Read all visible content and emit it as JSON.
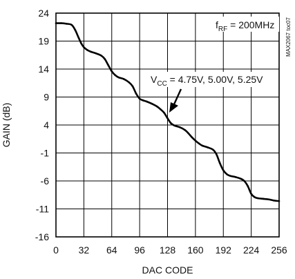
{
  "chart_data": {
    "type": "line",
    "title": "",
    "xlabel": "DAC CODE",
    "ylabel": "GAIN (dB)",
    "xlim": [
      0,
      256
    ],
    "ylim": [
      -16,
      24
    ],
    "grid": true,
    "x_ticks": [
      "0",
      "32",
      "64",
      "96",
      "128",
      "160",
      "192",
      "224",
      "256"
    ],
    "y_ticks": [
      "24",
      "19",
      "14",
      "9",
      "4",
      "-1",
      "-6",
      "-11",
      "-16"
    ],
    "series": [
      {
        "x": [
          0,
          6,
          12,
          18,
          22,
          26,
          29,
          32,
          36,
          40,
          46,
          52,
          56,
          60,
          64,
          68,
          72,
          78,
          84,
          88,
          92,
          96,
          100,
          104,
          110,
          116,
          120,
          124,
          128,
          132,
          136,
          142,
          148,
          152,
          156,
          160,
          164,
          168,
          174,
          180,
          184,
          188,
          192,
          196,
          200,
          206,
          212,
          216,
          220,
          224,
          228,
          232,
          238,
          244,
          250,
          256
        ],
        "values": [
          22.2,
          22.2,
          22.1,
          21.9,
          21.0,
          19.6,
          18.6,
          17.9,
          17.4,
          17.1,
          16.8,
          16.4,
          15.8,
          14.7,
          13.6,
          12.9,
          12.5,
          12.2,
          11.6,
          10.9,
          9.6,
          8.7,
          8.4,
          8.2,
          7.8,
          7.3,
          6.8,
          6.2,
          5.2,
          4.3,
          3.9,
          3.6,
          3.1,
          2.5,
          1.8,
          1.2,
          0.7,
          0.3,
          0.0,
          -0.4,
          -1.2,
          -2.8,
          -4.1,
          -4.8,
          -5.1,
          -5.3,
          -5.6,
          -6.0,
          -6.9,
          -8.3,
          -8.9,
          -9.1,
          -9.2,
          -9.3,
          -9.5,
          -9.6
        ]
      }
    ],
    "annotations": {
      "vcc_label": "V",
      "vcc_sub": "CC",
      "vcc_values": " = 4.75V, 5.00V, 5.25V",
      "frf_label": "f",
      "frf_sub": "RF",
      "frf_value": " = 200MHz",
      "fig_id": "MAX2067 toc07"
    },
    "colors": {
      "line": "#000000",
      "grid": "#000000"
    }
  }
}
